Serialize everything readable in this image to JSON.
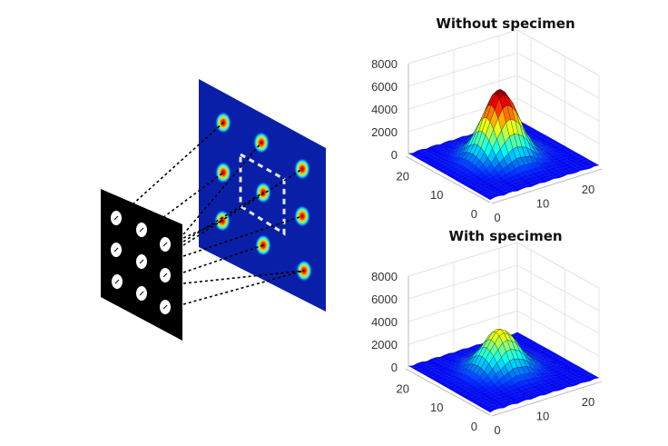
{
  "diagram": {
    "mask_grid": {
      "rows": 3,
      "cols": 3
    },
    "spot_grid": {
      "rows": 3,
      "cols": 3
    },
    "colors": {
      "mask": "#000000",
      "detector": "#0a1fa8",
      "highlight_box": "#e6e6e6"
    }
  },
  "chart_data": [
    {
      "type": "surface",
      "title": "Without specimen",
      "zticks": [
        "0",
        "2000",
        "4000",
        "6000",
        "8000"
      ],
      "xticks": [
        "0",
        "10",
        "20"
      ],
      "yticks": [
        "0",
        "10",
        "20"
      ],
      "xlim": [
        0,
        24
      ],
      "ylim": [
        0,
        24
      ],
      "zlim": [
        0,
        8000
      ],
      "peak": 6000,
      "peak_x": 12,
      "peak_y": 13,
      "sigma": 3.2,
      "colormap": "jet",
      "grid": true
    },
    {
      "type": "surface",
      "title": "With specimen",
      "zticks": [
        "0",
        "2000",
        "4000",
        "6000",
        "8000"
      ],
      "xticks": [
        "0",
        "10",
        "20"
      ],
      "yticks": [
        "0",
        "10",
        "20"
      ],
      "xlim": [
        0,
        24
      ],
      "ylim": [
        0,
        24
      ],
      "zlim": [
        0,
        8000
      ],
      "peak": 3600,
      "peak_x": 12,
      "peak_y": 13,
      "sigma": 3.2,
      "colormap": "jet",
      "grid": true
    }
  ]
}
